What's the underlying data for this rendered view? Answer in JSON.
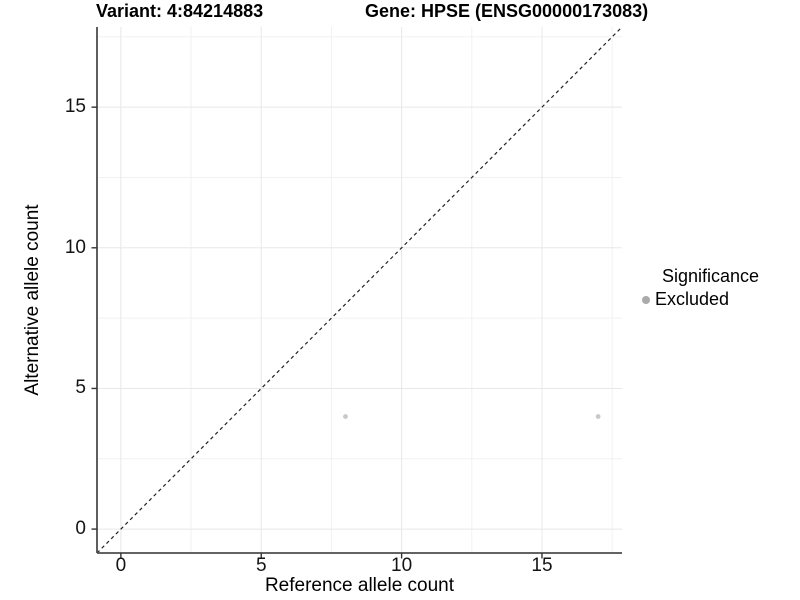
{
  "chart_data": {
    "type": "scatter",
    "title_left": "Variant: 4:84214883",
    "title_right": "Gene: HPSE (ENSG00000173083)",
    "xlabel": "Reference allele count",
    "ylabel": "Alternative allele count",
    "xlim": [
      -0.85,
      17.85
    ],
    "ylim": [
      -0.85,
      17.85
    ],
    "xticks": [
      0,
      5,
      10,
      15
    ],
    "yticks": [
      0,
      5,
      10,
      15
    ],
    "x_minor_ticks": [
      2.5,
      7.5,
      12.5,
      17.5
    ],
    "y_minor_ticks": [
      2.5,
      7.5,
      12.5,
      17.5
    ],
    "grid": true,
    "points": [
      {
        "x": 8,
        "y": 4,
        "significance": "Excluded"
      },
      {
        "x": 17,
        "y": 4,
        "significance": "Excluded"
      }
    ],
    "reference_line": {
      "kind": "identity",
      "style": "dashed"
    },
    "legend": {
      "position": "right",
      "title": "Significance",
      "items": [
        {
          "label": "Excluded",
          "color": "#aaaaaa"
        }
      ]
    },
    "colors": {
      "point": "#c9c9c9",
      "legend_point": "#aaaaaa",
      "grid_major": "#e8e8e8",
      "grid_minor": "#f1f1f1",
      "axis_line": "#4d4d4d",
      "tick_mark": "#333333",
      "dashed_line": "#222222",
      "background": "#ffffff"
    }
  }
}
